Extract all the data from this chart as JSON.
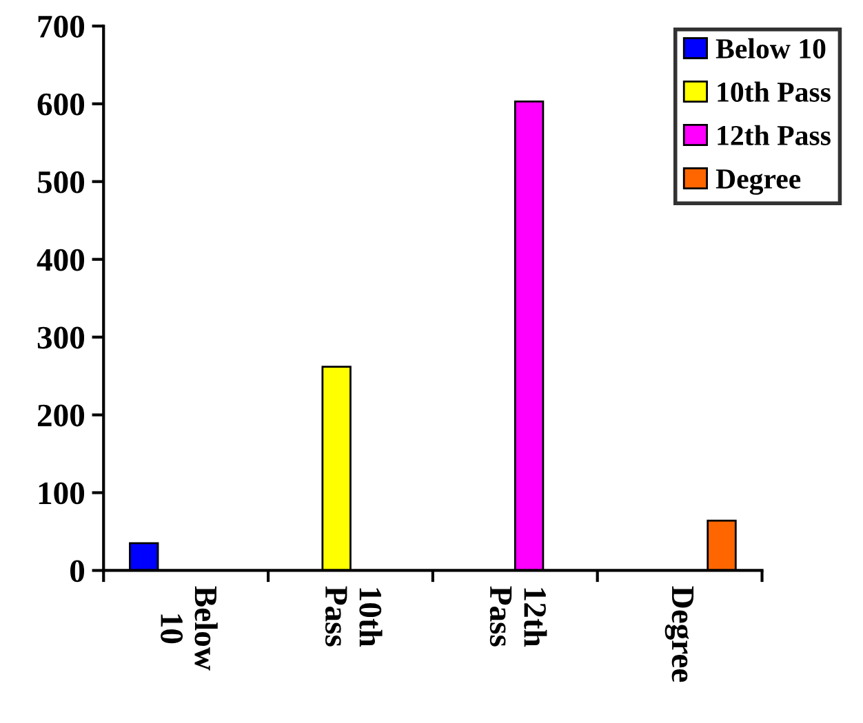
{
  "chart_data": {
    "type": "bar",
    "categories": [
      "Below 10",
      "10th Pass",
      "12th Pass",
      "Degree"
    ],
    "series": [
      {
        "name": "Below 10",
        "color": "#0000ff",
        "values": [
          35,
          null,
          null,
          null
        ]
      },
      {
        "name": "10th Pass",
        "color": "#ffff00",
        "values": [
          null,
          262,
          null,
          null
        ]
      },
      {
        "name": "12th Pass",
        "color": "#ff00ff",
        "values": [
          null,
          null,
          603,
          null
        ]
      },
      {
        "name": "Degree",
        "color": "#ff6600",
        "values": [
          null,
          null,
          null,
          64
        ]
      }
    ],
    "ylim": [
      0,
      700
    ],
    "yticks": [
      0,
      100,
      200,
      300,
      400,
      500,
      600,
      700
    ],
    "grid": false,
    "legend": "top right"
  }
}
